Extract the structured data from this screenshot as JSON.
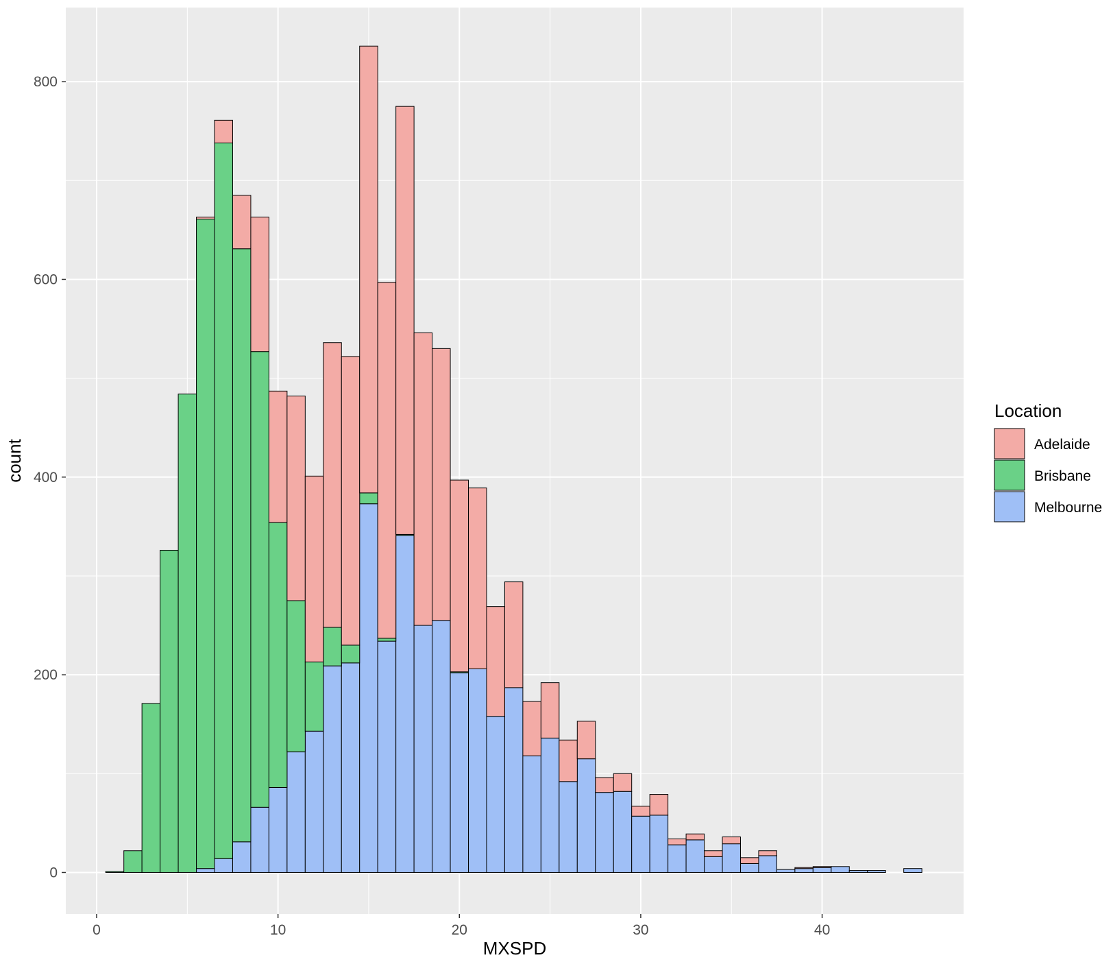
{
  "chart_data": {
    "type": "bar",
    "stacked": true,
    "xlabel": "MXSPD",
    "ylabel": "count",
    "xlim": [
      -1.7,
      47.8
    ],
    "ylim": [
      -42,
      875
    ],
    "x_ticks": [
      0,
      10,
      20,
      30,
      40
    ],
    "x_tick_labels": [
      "0",
      "10",
      "20",
      "30",
      "40"
    ],
    "y_ticks": [
      0,
      200,
      400,
      600,
      800
    ],
    "y_tick_labels": [
      "0",
      "200",
      "400",
      "600",
      "800"
    ],
    "bin_width": 1,
    "bin_centers": [
      1,
      2,
      3,
      4,
      5,
      6,
      7,
      8,
      9,
      10,
      11,
      12,
      13,
      14,
      15,
      16,
      17,
      18,
      19,
      20,
      21,
      22,
      23,
      24,
      25,
      26,
      27,
      28,
      29,
      30,
      31,
      32,
      33,
      34,
      35,
      36,
      37,
      38,
      39,
      40,
      41,
      42,
      43,
      44,
      45
    ],
    "grid": true,
    "legend": {
      "title": "Location",
      "position": "right"
    },
    "series": [
      {
        "name": "Melbourne",
        "color": "#9fbff6",
        "values": [
          0,
          0,
          0,
          0,
          0,
          4,
          14,
          31,
          66,
          86,
          122,
          143,
          209,
          212,
          373,
          234,
          341,
          250,
          255,
          202,
          206,
          158,
          187,
          118,
          136,
          92,
          115,
          81,
          82,
          57,
          58,
          28,
          33,
          16,
          29,
          9,
          17,
          3,
          4,
          5,
          6,
          2,
          2,
          0,
          4
        ]
      },
      {
        "name": "Brisbane",
        "color": "#6ad187",
        "values": [
          1,
          22,
          171,
          326,
          484,
          657,
          724,
          600,
          461,
          268,
          153,
          70,
          39,
          18,
          11,
          3,
          1,
          0,
          0,
          1,
          0,
          0,
          0,
          0,
          0,
          0,
          0,
          0,
          0,
          0,
          0,
          0,
          0,
          0,
          0,
          0,
          0,
          0,
          0,
          0,
          0,
          0,
          0,
          0,
          0
        ]
      },
      {
        "name": "Adelaide",
        "color": "#f3aba6",
        "values": [
          0,
          0,
          0,
          0,
          0,
          2,
          23,
          54,
          136,
          133,
          207,
          188,
          288,
          292,
          452,
          360,
          433,
          296,
          275,
          194,
          183,
          111,
          107,
          55,
          56,
          42,
          38,
          15,
          18,
          10,
          21,
          6,
          6,
          6,
          7,
          6,
          5,
          0,
          1,
          1,
          0,
          0,
          0,
          0,
          0
        ]
      }
    ]
  }
}
